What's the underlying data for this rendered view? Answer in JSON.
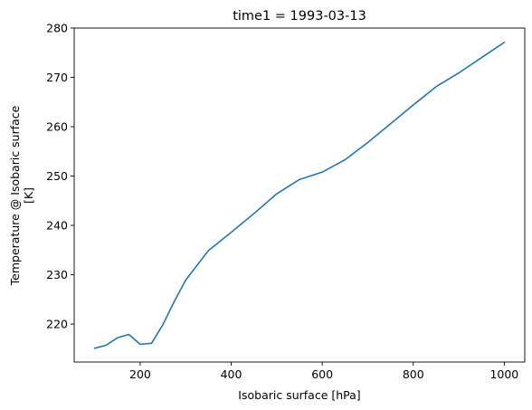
{
  "chart_data": {
    "type": "line",
    "title": "time1 = 1993-03-13",
    "xlabel": "Isobaric surface [hPa]",
    "ylabel_lines": [
      "Temperature @ Isobaric surface",
      "[K]"
    ],
    "xlim": [
      55,
      1045
    ],
    "ylim": [
      212.3,
      280
    ],
    "xticks": [
      200,
      400,
      600,
      800,
      1000
    ],
    "yticks": [
      220,
      230,
      240,
      250,
      260,
      270,
      280
    ],
    "grid": false,
    "series": [
      {
        "color": "#1f77b4",
        "x": [
          100,
          125,
          150,
          175,
          200,
          225,
          250,
          275,
          300,
          350,
          400,
          450,
          500,
          550,
          600,
          650,
          700,
          750,
          800,
          850,
          900,
          950,
          1000
        ],
        "y": [
          215.1,
          215.7,
          217.2,
          217.9,
          215.9,
          216.1,
          219.9,
          224.6,
          228.9,
          234.9,
          238.6,
          242.4,
          246.4,
          249.3,
          250.8,
          253.3,
          256.8,
          260.6,
          264.4,
          268.1,
          270.9,
          274.0,
          277.1
        ]
      }
    ]
  }
}
